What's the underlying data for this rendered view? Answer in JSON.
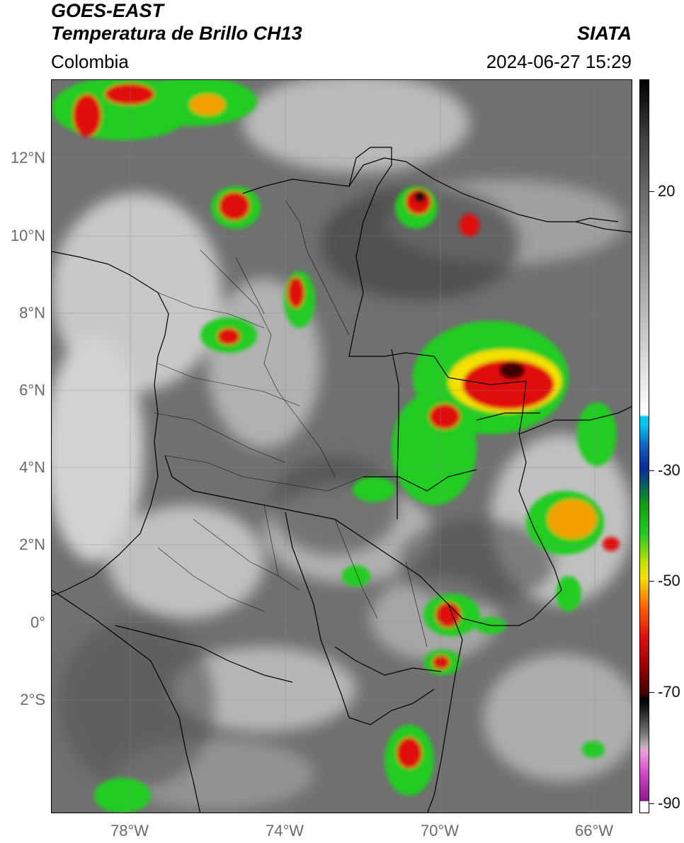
{
  "header": {
    "satellite": "GOES-EAST",
    "product": "Temperatura de Brillo CH13",
    "agency": "SIATA",
    "region": "Colombia",
    "datetime": "2024-06-27 15:29"
  },
  "map": {
    "lat_labels": [
      "12°N",
      "10°N",
      "8°N",
      "6°N",
      "4°N",
      "2°N",
      "0°",
      "2°S"
    ],
    "lon_labels": [
      "78°W",
      "74°W",
      "70°W",
      "66°W"
    ],
    "background_color": "#6e6e6e"
  },
  "colorbar": {
    "unit_hint": "",
    "labels": [
      "20",
      "-30",
      "-50",
      "-70",
      "-90"
    ],
    "colors": {
      "cold_tail": "#ffffff",
      "magenta": "#d040c0",
      "cyan": "#00c8f0",
      "blue": "#0a2a9a",
      "green": "#22cc22",
      "yellow": "#f4e000",
      "red": "#e01010",
      "black": "#000000",
      "gray_light": "#e6e6e6",
      "gray_dark": "#1a1a1a"
    }
  }
}
